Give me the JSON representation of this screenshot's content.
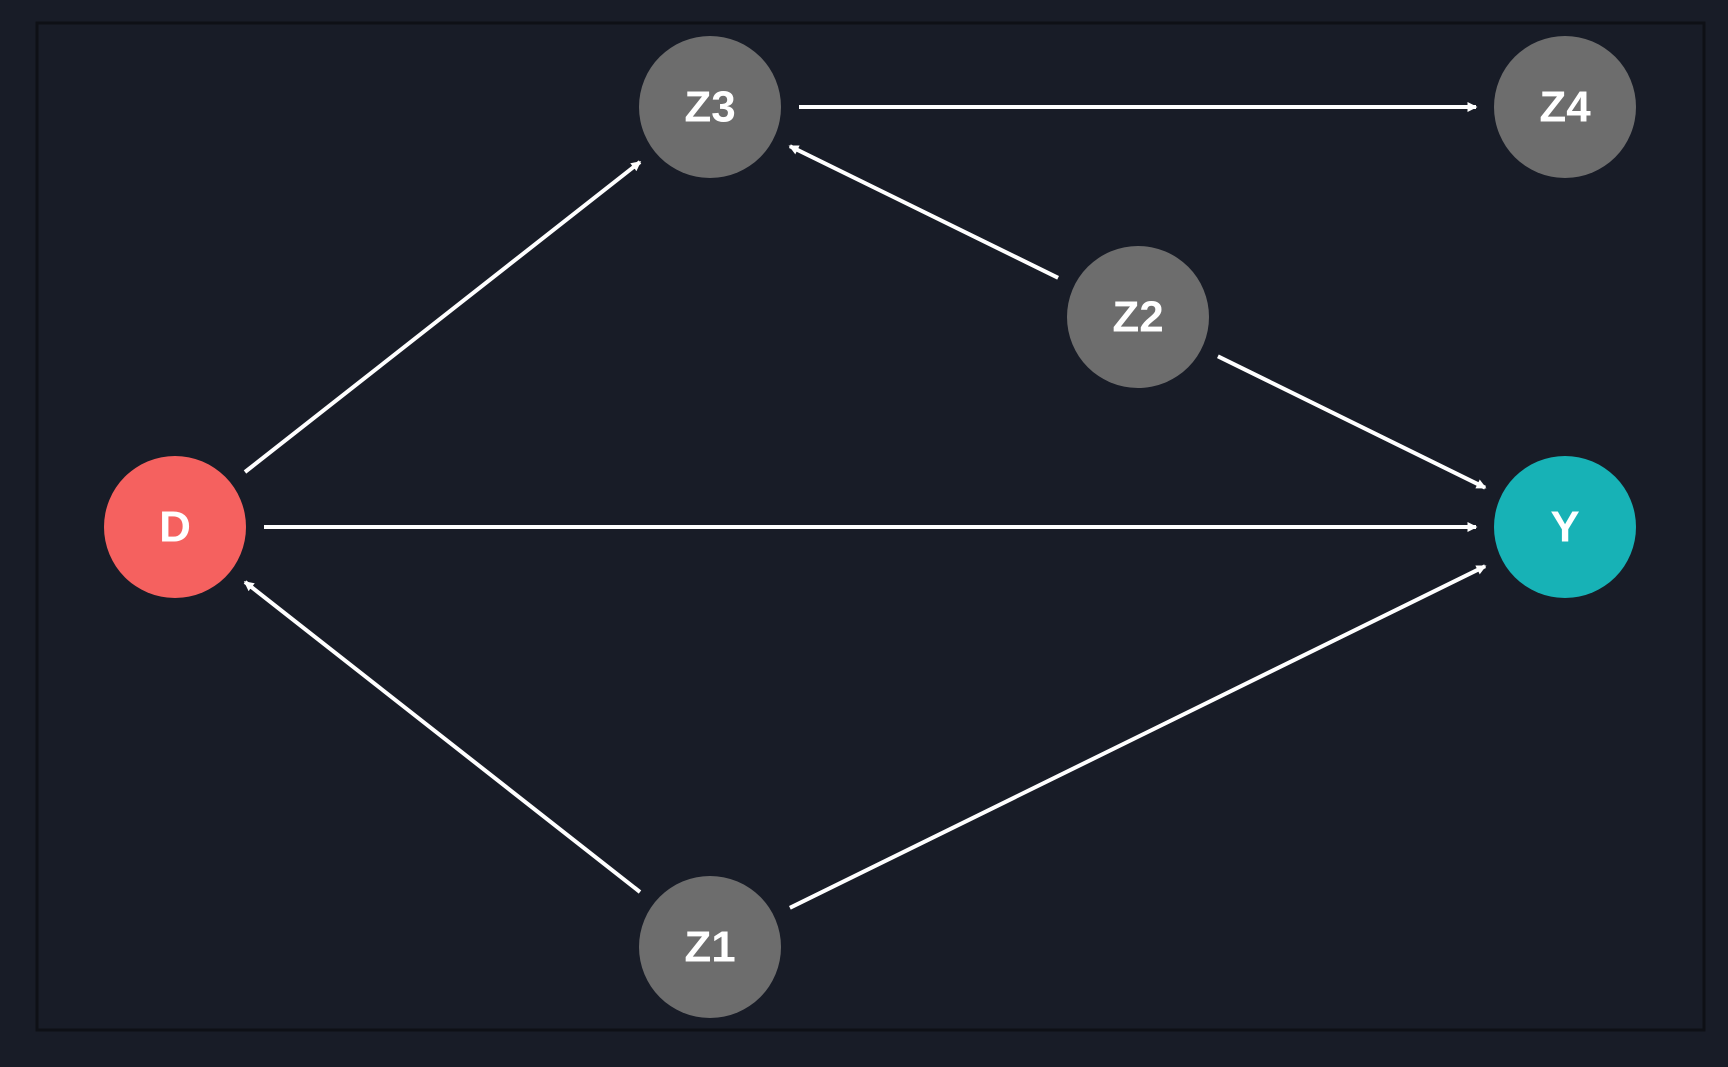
{
  "diagram": {
    "type": "directed-acyclic-graph",
    "colors": {
      "background": "#181c27",
      "frame": "#0e1016",
      "edge": "#ffffff",
      "label": "#ffffff",
      "treatment": "#f5615f",
      "outcome": "#17b2b6",
      "covariate": "#6d6d6d"
    },
    "nodes": [
      {
        "id": "D",
        "label": "D",
        "role": "treatment"
      },
      {
        "id": "Y",
        "label": "Y",
        "role": "outcome"
      },
      {
        "id": "Z1",
        "label": "Z1",
        "role": "covariate"
      },
      {
        "id": "Z2",
        "label": "Z2",
        "role": "covariate"
      },
      {
        "id": "Z3",
        "label": "Z3",
        "role": "covariate"
      },
      {
        "id": "Z4",
        "label": "Z4",
        "role": "covariate"
      }
    ],
    "edges": [
      {
        "from": "D",
        "to": "Y"
      },
      {
        "from": "D",
        "to": "Z3"
      },
      {
        "from": "Z1",
        "to": "D"
      },
      {
        "from": "Z1",
        "to": "Y"
      },
      {
        "from": "Z2",
        "to": "Z3"
      },
      {
        "from": "Z2",
        "to": "Y"
      },
      {
        "from": "Z3",
        "to": "Z4"
      }
    ]
  }
}
